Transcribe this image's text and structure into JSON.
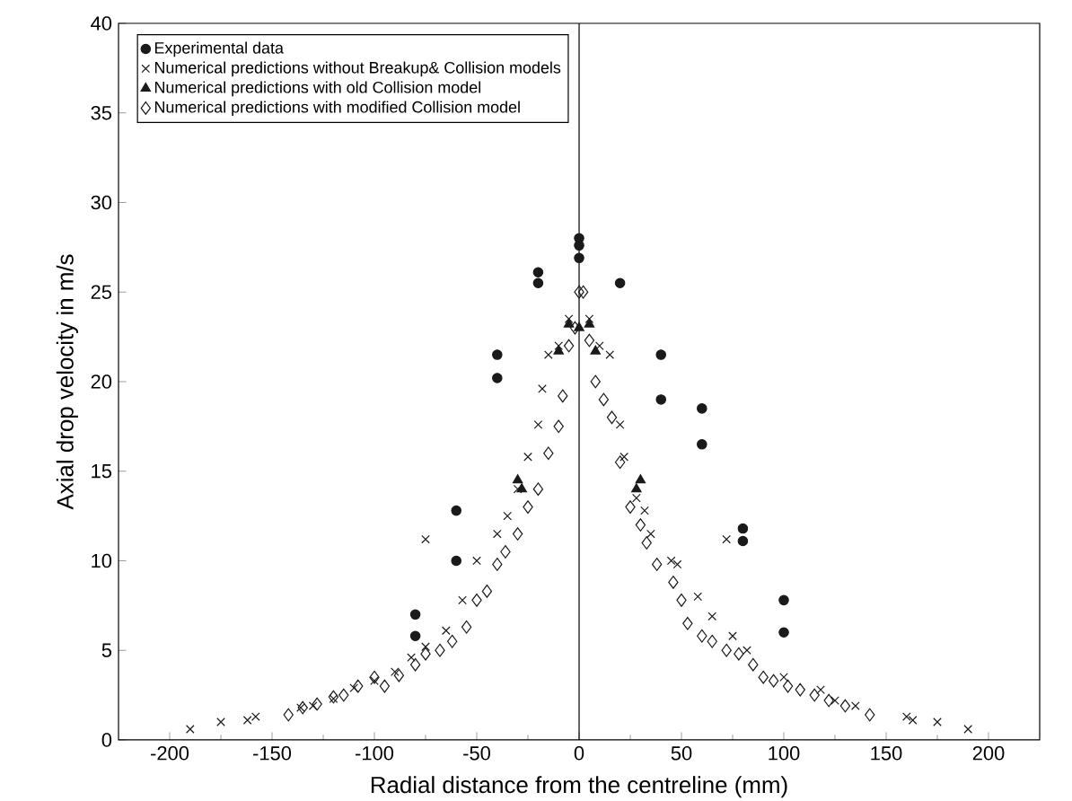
{
  "chart_data": {
    "type": "scatter",
    "xlabel": "Radial distance from the centreline (mm)",
    "ylabel": "Axial drop velocity in m/s",
    "xlim": [
      -225,
      225
    ],
    "ylim": [
      0,
      40
    ],
    "xticks": [
      -200,
      -150,
      -100,
      -50,
      0,
      50,
      100,
      150,
      200
    ],
    "yticks": [
      0,
      5,
      10,
      15,
      20,
      25,
      30,
      35,
      40
    ],
    "legend": "top left",
    "ref_lines": [
      {
        "axis": "x",
        "value": 0
      }
    ],
    "series": [
      {
        "name": "Experimental data",
        "color": "#1a1a1a",
        "marker": "circle",
        "x": [
          -80,
          -80,
          -60,
          -60,
          -40,
          -40,
          -20,
          -20,
          0,
          0,
          0,
          20,
          40,
          40,
          60,
          60,
          80,
          80,
          100,
          100
        ],
        "values": [
          7.0,
          5.8,
          12.8,
          10.0,
          21.5,
          20.2,
          26.1,
          25.5,
          28.0,
          27.6,
          26.9,
          25.5,
          21.5,
          19.0,
          18.5,
          16.5,
          11.8,
          11.1,
          7.8,
          6.0
        ]
      },
      {
        "name": "Numerical predictions without Breakup& Collision models",
        "color": "#1a1a1a",
        "marker": "cross",
        "x": [
          -190,
          -175,
          -162,
          -158,
          -136,
          -130,
          -120,
          -110,
          -100,
          -90,
          -82,
          -75,
          -65,
          -57,
          -50,
          -75,
          -40,
          -35,
          -30,
          -25,
          -20,
          -18,
          -15,
          -10,
          -5,
          5,
          10,
          15,
          20,
          22,
          28,
          32,
          35,
          45,
          48,
          58,
          65,
          72,
          75,
          82,
          100,
          118,
          125,
          135,
          160,
          163,
          175,
          190
        ],
        "values": [
          0.6,
          1.0,
          1.1,
          1.3,
          1.8,
          1.9,
          2.3,
          2.9,
          3.3,
          3.8,
          4.6,
          5.2,
          6.1,
          7.8,
          10.0,
          11.2,
          11.5,
          12.5,
          14.0,
          15.8,
          17.6,
          19.6,
          21.5,
          22.0,
          23.5,
          23.5,
          22.0,
          21.5,
          17.6,
          15.8,
          13.5,
          12.8,
          11.5,
          10.0,
          9.8,
          8.0,
          6.9,
          11.2,
          5.8,
          5.0,
          3.5,
          2.8,
          2.2,
          1.9,
          1.3,
          1.1,
          1.0,
          0.6
        ]
      },
      {
        "name": "Numerical predictions with old Collision model",
        "color": "#1a1a1a",
        "marker": "triangle",
        "x": [
          -30,
          -28,
          -10,
          -5,
          0,
          5,
          8,
          28,
          30
        ],
        "values": [
          14.5,
          14.0,
          21.7,
          23.2,
          23.0,
          23.2,
          21.7,
          14.0,
          14.5
        ]
      },
      {
        "name": "Numerical predictions with modified Collision model",
        "color": "#1a1a1a",
        "marker": "diamond",
        "x": [
          -142,
          -135,
          -128,
          -120,
          -115,
          -108,
          -100,
          -95,
          -88,
          -80,
          -75,
          -68,
          -62,
          -55,
          -50,
          -45,
          -40,
          -36,
          -30,
          -25,
          -20,
          -15,
          -10,
          -8,
          -5,
          -2,
          0,
          2,
          5,
          8,
          12,
          16,
          20,
          25,
          30,
          33,
          38,
          46,
          50,
          53,
          60,
          65,
          72,
          78,
          85,
          90,
          95,
          102,
          108,
          115,
          122,
          130,
          142
        ],
        "values": [
          1.4,
          1.8,
          2.0,
          2.4,
          2.5,
          3.0,
          3.5,
          3.0,
          3.6,
          4.2,
          4.8,
          5.0,
          5.5,
          6.3,
          7.8,
          8.3,
          9.8,
          10.5,
          11.5,
          13.0,
          14.0,
          16.0,
          17.5,
          19.2,
          22.0,
          23.0,
          25.0,
          25.0,
          22.3,
          20.0,
          19.0,
          18.0,
          15.5,
          13.0,
          12.0,
          11.0,
          9.8,
          8.8,
          7.8,
          6.5,
          5.8,
          5.5,
          5.0,
          4.8,
          4.2,
          3.5,
          3.3,
          3.0,
          2.8,
          2.5,
          2.2,
          1.9,
          1.4
        ]
      }
    ]
  }
}
